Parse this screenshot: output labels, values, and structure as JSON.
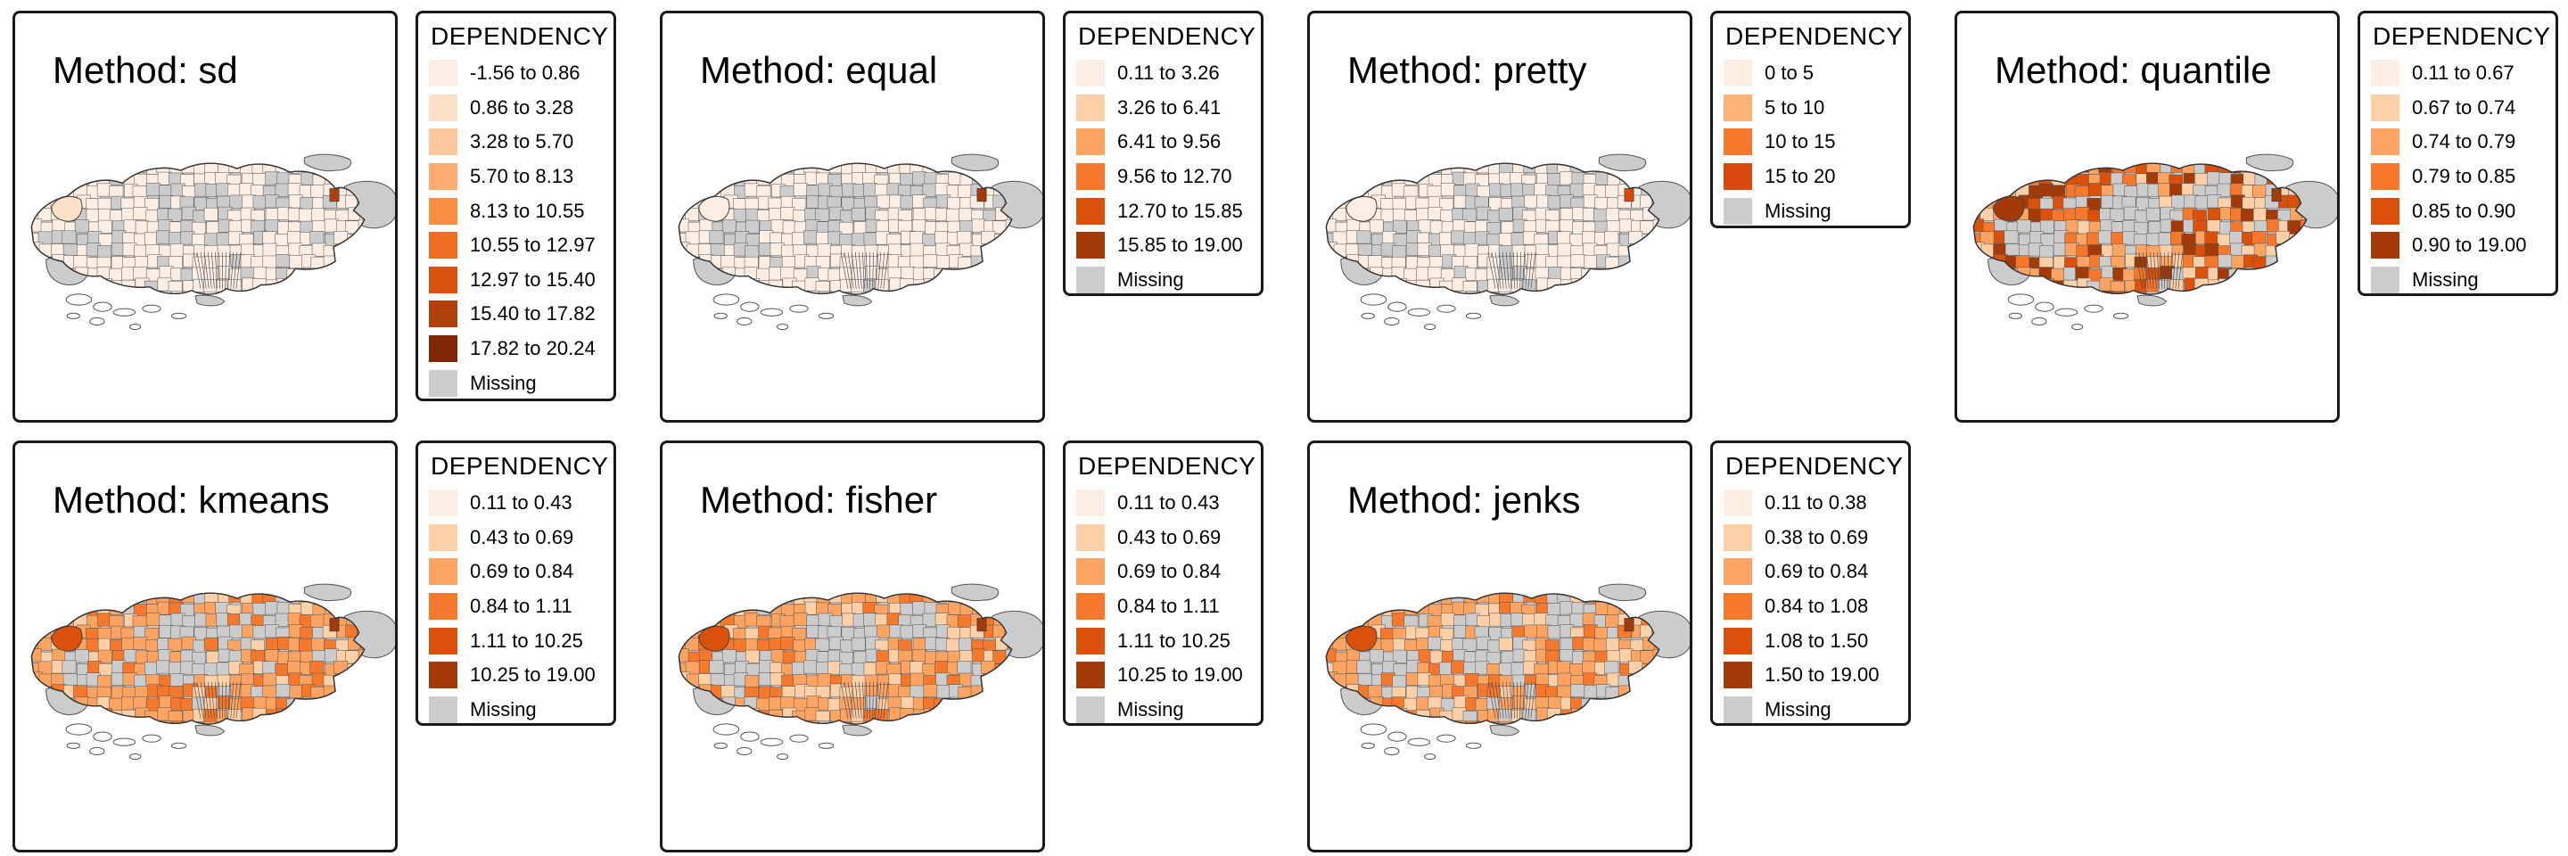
{
  "missing_color": "#cccccc",
  "panels": [
    {
      "method_title": "Method: sd",
      "legend_title": "DEPENDENCY",
      "classes": [
        {
          "label": "-1.56 to 0.86",
          "color": "#fdeee3"
        },
        {
          "label": "0.86 to 3.28",
          "color": "#fde0c8"
        },
        {
          "label": "3.28 to 5.70",
          "color": "#fdc79c"
        },
        {
          "label": "5.70 to 8.13",
          "color": "#fdab6e"
        },
        {
          "label": "8.13 to 10.55",
          "color": "#fb8d43"
        },
        {
          "label": "10.55 to 12.97",
          "color": "#f06e1f"
        },
        {
          "label": "12.97 to 15.40",
          "color": "#d9520b"
        },
        {
          "label": "15.40 to 17.82",
          "color": "#b1400a"
        },
        {
          "label": "17.82 to 20.24",
          "color": "#7f2704"
        }
      ],
      "missing_label": "Missing",
      "main_fill_class": 0,
      "hot_spot_class": 7,
      "nw_class": 1
    },
    {
      "method_title": "Method: equal",
      "legend_title": "DEPENDENCY",
      "classes": [
        {
          "label": "0.11 to 3.26",
          "color": "#fdeee3"
        },
        {
          "label": "3.26 to 6.41",
          "color": "#fdd0a8"
        },
        {
          "label": "6.41 to 9.56",
          "color": "#fda463"
        },
        {
          "label": "9.56 to 12.70",
          "color": "#f5782d"
        },
        {
          "label": "12.70 to 15.85",
          "color": "#db510c"
        },
        {
          "label": "15.85 to 19.00",
          "color": "#a43a07"
        }
      ],
      "missing_label": "Missing",
      "main_fill_class": 0,
      "hot_spot_class": 5,
      "nw_class": 0
    },
    {
      "method_title": "Method: pretty",
      "legend_title": "DEPENDENCY",
      "classes": [
        {
          "label": "0 to 5",
          "color": "#fdeee3"
        },
        {
          "label": "5 to 10",
          "color": "#fdb276"
        },
        {
          "label": "10 to 15",
          "color": "#f5782d"
        },
        {
          "label": "15 to 20",
          "color": "#d9480f"
        }
      ],
      "missing_label": "Missing",
      "main_fill_class": 0,
      "hot_spot_class": 3,
      "nw_class": 0
    },
    {
      "method_title": "Method: quantile",
      "legend_title": "DEPENDENCY",
      "classes": [
        {
          "label": "0.11 to 0.67",
          "color": "#fdeee3"
        },
        {
          "label": "0.67 to 0.74",
          "color": "#fdd0a8"
        },
        {
          "label": "0.74 to 0.79",
          "color": "#fda463"
        },
        {
          "label": "0.79 to 0.85",
          "color": "#f5782d"
        },
        {
          "label": "0.85 to 0.90",
          "color": "#db510c"
        },
        {
          "label": "0.90 to 19.00",
          "color": "#a43a07"
        }
      ],
      "missing_label": "Missing",
      "main_fill_class": 3,
      "hot_spot_class": 5,
      "nw_class": 5
    },
    {
      "method_title": "Method: kmeans",
      "legend_title": "DEPENDENCY",
      "classes": [
        {
          "label": "0.11 to 0.43",
          "color": "#fdeee3"
        },
        {
          "label": "0.43 to 0.69",
          "color": "#fdd0a8"
        },
        {
          "label": "0.69 to 0.84",
          "color": "#fda463"
        },
        {
          "label": "0.84 to 1.11",
          "color": "#f5782d"
        },
        {
          "label": "1.11 to 10.25",
          "color": "#db510c"
        },
        {
          "label": "10.25 to 19.00",
          "color": "#a43a07"
        }
      ],
      "missing_label": "Missing",
      "main_fill_class": 2,
      "hot_spot_class": 5,
      "nw_class": 4
    },
    {
      "method_title": "Method: fisher",
      "legend_title": "DEPENDENCY",
      "classes": [
        {
          "label": "0.11 to 0.43",
          "color": "#fdeee3"
        },
        {
          "label": "0.43 to 0.69",
          "color": "#fdd0a8"
        },
        {
          "label": "0.69 to 0.84",
          "color": "#fda463"
        },
        {
          "label": "0.84 to 1.11",
          "color": "#f5782d"
        },
        {
          "label": "1.11 to 10.25",
          "color": "#db510c"
        },
        {
          "label": "10.25 to 19.00",
          "color": "#a43a07"
        }
      ],
      "missing_label": "Missing",
      "main_fill_class": 2,
      "hot_spot_class": 5,
      "nw_class": 4
    },
    {
      "method_title": "Method: jenks",
      "legend_title": "DEPENDENCY",
      "classes": [
        {
          "label": "0.11 to 0.38",
          "color": "#fdeee3"
        },
        {
          "label": "0.38 to 0.69",
          "color": "#fdd0a8"
        },
        {
          "label": "0.69 to 0.84",
          "color": "#fda463"
        },
        {
          "label": "0.84 to 1.08",
          "color": "#f5782d"
        },
        {
          "label": "1.08 to 1.50",
          "color": "#db510c"
        },
        {
          "label": "1.50 to 19.00",
          "color": "#a43a07"
        }
      ],
      "missing_label": "Missing",
      "main_fill_class": 2,
      "hot_spot_class": 5,
      "nw_class": 4
    }
  ]
}
